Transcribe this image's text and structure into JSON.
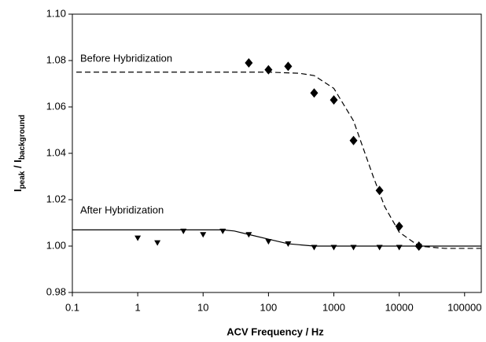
{
  "chart_data": {
    "type": "scatter",
    "x_label": "ACV Frequency / Hz",
    "y_label_parts": [
      "I",
      "peak",
      " / I",
      "background"
    ],
    "annotations": [
      "Before Hybridization",
      "After Hybridization"
    ],
    "xscale": "log",
    "xlim": [
      0.1,
      180000
    ],
    "xticks": [
      0.1,
      1,
      10,
      100,
      1000,
      10000,
      100000
    ],
    "ylim": [
      0.98,
      1.1
    ],
    "yticks": [
      0.98,
      {
        "value": 1.0,
        "label": "1.00"
      },
      1.02,
      1.04,
      1.06,
      1.08,
      {
        "value": 1.1,
        "label": "1.10"
      }
    ],
    "series": [
      {
        "marker": "diamond",
        "color": "#000000",
        "x": [
          50,
          100,
          200,
          500,
          1000,
          2000,
          5000,
          10000,
          20000
        ],
        "values": [
          1.079,
          1.076,
          1.0775,
          1.066,
          1.063,
          1.0455,
          1.024,
          1.0085,
          1.0
        ]
      },
      {
        "marker": "triangle-down",
        "color": "#000000",
        "x": [
          1,
          2,
          5,
          10,
          20,
          50,
          100,
          200,
          500,
          1000,
          2000,
          5000,
          10000,
          20000
        ],
        "values": [
          1.0035,
          1.0015,
          1.0065,
          1.005,
          1.0065,
          1.005,
          1.002,
          1.001,
          0.9995,
          0.9995,
          0.9995,
          0.9995,
          0.9995,
          1.0
        ]
      },
      {
        "line": "dashed",
        "color": "#000000",
        "x": [
          0.115,
          100,
          300,
          500,
          1000,
          2000,
          4000,
          6000,
          10000,
          20000,
          50000,
          180000
        ],
        "values": [
          1.075,
          1.075,
          1.0745,
          1.0735,
          1.068,
          1.054,
          1.03,
          1.017,
          1.006,
          1.0,
          0.999,
          0.999
        ]
      },
      {
        "line": "solid",
        "color": "#000000",
        "x": [
          0.1,
          20,
          30,
          50,
          100,
          200,
          500,
          180000
        ],
        "values": [
          1.007,
          1.007,
          1.0065,
          1.005,
          1.003,
          1.001,
          1.0,
          1.0
        ]
      }
    ]
  }
}
